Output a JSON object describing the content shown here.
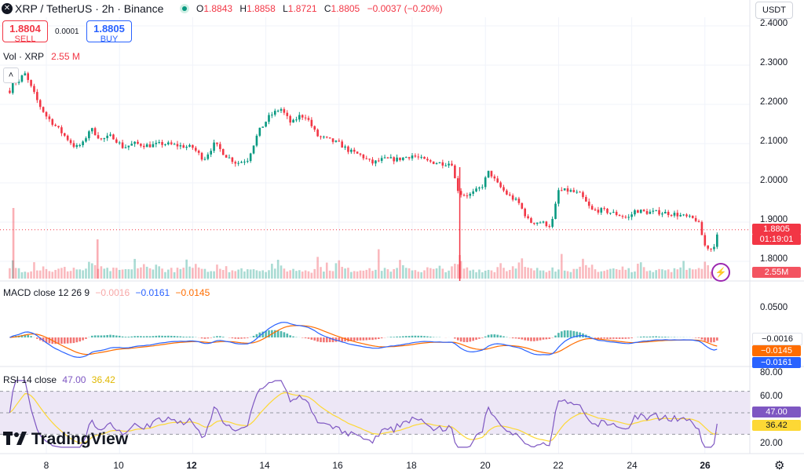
{
  "header": {
    "title": "XRP / TetherUS · 2h · Binance",
    "logo_glyph": "✕",
    "o_label": "O",
    "o_value": "1.8843",
    "h_label": "H",
    "h_value": "1.8858",
    "l_label": "L",
    "l_value": "1.8721",
    "c_label": "C",
    "c_value": "1.8805",
    "change": "−0.0037 (−0.20%)"
  },
  "trade": {
    "sell_price": "1.8804",
    "sell_label": "SELL",
    "buy_price": "1.8805",
    "buy_label": "BUY",
    "spread": "0.0001"
  },
  "currency_button": "USDT",
  "collapse_icon": "˄",
  "volume": {
    "label": "Vol · XRP",
    "value": "2.55 M",
    "tag": "2.55M"
  },
  "price_tag": {
    "price": "1.8805",
    "countdown": "01:19:01"
  },
  "price_axis": [
    "2.4000",
    "2.3000",
    "2.2000",
    "2.1000",
    "2.0000",
    "1.9000",
    "1.8000"
  ],
  "macd": {
    "label": "MACD close 12 26 9",
    "hist_value": "−0.0016",
    "macd_value": "−0.0161",
    "signal_value": "−0.0145",
    "axis": [
      "0.0500"
    ]
  },
  "rsi": {
    "label": "RSI 14 close",
    "rsi_value": "47.00",
    "ma_value": "36.42",
    "axis": [
      "80.00",
      "60.00",
      "40.00",
      "20.00"
    ]
  },
  "x_axis": [
    "8",
    "10",
    "12",
    "14",
    "16",
    "18",
    "20",
    "22",
    "24",
    "26"
  ],
  "brand": "TradingView",
  "colors": {
    "up": "#089981",
    "down": "#f23645",
    "macd_line": "#2962ff",
    "signal_line": "#ff6d00",
    "rsi_line": "#7e57c2",
    "rsi_ma": "#fdd835",
    "rsi_band": "#ede7f6"
  },
  "chart_data": [
    {
      "type": "candlestick",
      "title": "XRP / TetherUS · 2h · Binance",
      "x_ticks": [
        "8",
        "10",
        "12",
        "14",
        "16",
        "18",
        "20",
        "22",
        "24",
        "26"
      ],
      "ylim": [
        1.75,
        2.41
      ],
      "y_ticks": [
        2.4,
        2.3,
        2.2,
        2.1,
        2.0,
        1.9,
        1.8
      ],
      "last_price": 1.8805,
      "close_path": [
        [
          7.0,
          2.235
        ],
        [
          7.1,
          2.27
        ],
        [
          7.2,
          2.25
        ],
        [
          7.4,
          2.28
        ],
        [
          7.6,
          2.24
        ],
        [
          7.8,
          2.2
        ],
        [
          8.0,
          2.17
        ],
        [
          8.3,
          2.14
        ],
        [
          8.6,
          2.11
        ],
        [
          8.8,
          2.09
        ],
        [
          9.0,
          2.1
        ],
        [
          9.2,
          2.14
        ],
        [
          9.5,
          2.11
        ],
        [
          9.8,
          2.12
        ],
        [
          10.1,
          2.09
        ],
        [
          10.4,
          2.1
        ],
        [
          10.8,
          2.095
        ],
        [
          11.2,
          2.1
        ],
        [
          11.6,
          2.095
        ],
        [
          12.0,
          2.09
        ],
        [
          12.3,
          2.06
        ],
        [
          12.6,
          2.1
        ],
        [
          12.9,
          2.07
        ],
        [
          13.2,
          2.05
        ],
        [
          13.5,
          2.06
        ],
        [
          13.8,
          2.13
        ],
        [
          14.1,
          2.17
        ],
        [
          14.4,
          2.19
        ],
        [
          14.7,
          2.15
        ],
        [
          14.9,
          2.17
        ],
        [
          15.1,
          2.17
        ],
        [
          15.4,
          2.12
        ],
        [
          15.7,
          2.11
        ],
        [
          16.0,
          2.1
        ],
        [
          16.3,
          2.08
        ],
        [
          16.6,
          2.07
        ],
        [
          16.9,
          2.05
        ],
        [
          17.2,
          2.06
        ],
        [
          17.6,
          2.06
        ],
        [
          18.0,
          2.07
        ],
        [
          18.4,
          2.055
        ],
        [
          18.8,
          2.05
        ],
        [
          19.1,
          2.05
        ],
        [
          19.2,
          1.99
        ],
        [
          19.35,
          1.97
        ],
        [
          19.6,
          1.97
        ],
        [
          19.9,
          1.99
        ],
        [
          20.1,
          2.03
        ],
        [
          20.3,
          2.0
        ],
        [
          20.6,
          1.97
        ],
        [
          20.9,
          1.95
        ],
        [
          21.2,
          1.9
        ],
        [
          21.5,
          1.9
        ],
        [
          21.8,
          1.89
        ],
        [
          22.0,
          1.98
        ],
        [
          22.3,
          1.98
        ],
        [
          22.6,
          1.97
        ],
        [
          22.9,
          1.93
        ],
        [
          23.2,
          1.93
        ],
        [
          23.6,
          1.92
        ],
        [
          23.9,
          1.91
        ],
        [
          24.1,
          1.93
        ],
        [
          24.4,
          1.925
        ],
        [
          24.8,
          1.925
        ],
        [
          25.2,
          1.92
        ],
        [
          25.6,
          1.91
        ],
        [
          25.8,
          1.905
        ],
        [
          26.0,
          1.84
        ],
        [
          26.2,
          1.83
        ],
        [
          26.4,
          1.8805
        ]
      ],
      "spikes": [
        [
          19.3,
          2.04,
          1.75
        ]
      ]
    },
    {
      "type": "bar",
      "title": "Vol · XRP",
      "last_value": "2.55 M",
      "relative_values": [
        0.3,
        1.0,
        0.35,
        0.4,
        0.3,
        0.3,
        0.25,
        0.35,
        0.7,
        0.4,
        0.35,
        0.55,
        0.3,
        0.3,
        0.25,
        0.25,
        0.3,
        0.35,
        0.35,
        0.3,
        0.3,
        0.4,
        0.35,
        0.3,
        0.3,
        0.35,
        0.55,
        0.5,
        0.6,
        0.4,
        0.35,
        0.3,
        0.3,
        0.3,
        0.3,
        0.3,
        0.25,
        0.3,
        0.3,
        0.25,
        0.45,
        0.9,
        0.4,
        0.35,
        0.5,
        0.4,
        0.35,
        0.55,
        0.7,
        0.4,
        0.35,
        0.3,
        0.3,
        0.3,
        0.3,
        0.3,
        0.3,
        0.4,
        0.65,
        0.35
      ]
    },
    {
      "type": "line",
      "title": "MACD close 12 26 9",
      "series": [
        {
          "name": "MACD",
          "value": -0.0161
        },
        {
          "name": "Signal",
          "value": -0.0145
        },
        {
          "name": "Histogram",
          "value": -0.0016
        }
      ],
      "y_ticks": [
        0.05
      ]
    },
    {
      "type": "line",
      "title": "RSI 14 close",
      "ylim": [
        15,
        85
      ],
      "y_ticks": [
        80,
        60,
        40,
        20
      ],
      "band": [
        30,
        70
      ],
      "series": [
        {
          "name": "RSI",
          "value": 47.0
        },
        {
          "name": "MA",
          "value": 36.42
        }
      ]
    }
  ]
}
